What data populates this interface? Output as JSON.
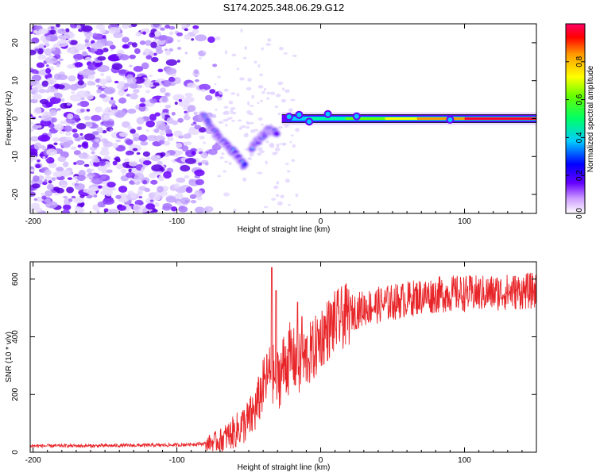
{
  "title": "S174.2025.348.06.29.G12",
  "chart_data": [
    {
      "type": "heatmap",
      "xlabel": "Height of straight line (km)",
      "ylabel": "Frequency (Hz)",
      "xlim": [
        -202,
        150
      ],
      "ylim": [
        -25,
        25
      ],
      "xticks": [
        -200,
        -100,
        0,
        100
      ],
      "yticks": [
        -20,
        -10,
        0,
        10,
        20
      ],
      "colorbar": {
        "label": "Normalized spectral amplitude",
        "range": [
          0,
          1
        ],
        "ticks": [
          "0.0",
          "0.2",
          "0.4",
          "0.6",
          "0.8"
        ]
      },
      "features": [
        {
          "name": "noise-region",
          "x_range": [
            -202,
            -75
          ],
          "freq_range": [
            -25,
            25
          ],
          "amplitude": "low (0.0–0.1)"
        },
        {
          "name": "descending-track",
          "points": [
            [
              -82,
              1
            ],
            [
              -75,
              -3
            ],
            [
              -68,
              -6
            ],
            [
              -60,
              -9
            ],
            [
              -52,
              -13
            ]
          ],
          "amplitude": "0.1–0.3"
        },
        {
          "name": "ascending-track",
          "points": [
            [
              -48,
              -8
            ],
            [
              -42,
              -5
            ],
            [
              -36,
              -3
            ],
            [
              -30,
              -4
            ]
          ],
          "amplitude": "0.2–0.4"
        },
        {
          "name": "carrier-line",
          "x_range": [
            -27,
            150
          ],
          "frequency": 0,
          "amplitude": "0.3 rising to 1.0"
        }
      ]
    },
    {
      "type": "line",
      "xlabel": "Height of straight line (km)",
      "ylabel": "SNR (10 * v/v)",
      "xlim": [
        -202,
        150
      ],
      "ylim": [
        0,
        660
      ],
      "xticks": [
        -200,
        -100,
        0,
        100
      ],
      "yticks": [
        0,
        200,
        400,
        600
      ],
      "series": [
        {
          "name": "SNR",
          "color": "#e8262a",
          "x": [
            -202,
            -180,
            -160,
            -140,
            -120,
            -100,
            -80,
            -70,
            -60,
            -50,
            -45,
            -40,
            -35,
            -30,
            -25,
            -20,
            -15,
            -10,
            -5,
            0,
            10,
            20,
            30,
            50,
            70,
            90,
            110,
            130,
            150
          ],
          "y": [
            22,
            22,
            22,
            23,
            24,
            25,
            30,
            40,
            70,
            110,
            150,
            230,
            280,
            250,
            310,
            330,
            300,
            330,
            350,
            400,
            450,
            480,
            500,
            520,
            540,
            550,
            550,
            555,
            560
          ]
        }
      ],
      "spikes": [
        [
          -34,
          640
        ],
        [
          -31,
          560
        ],
        [
          -16,
          520
        ],
        [
          -13,
          470
        ]
      ]
    }
  ]
}
